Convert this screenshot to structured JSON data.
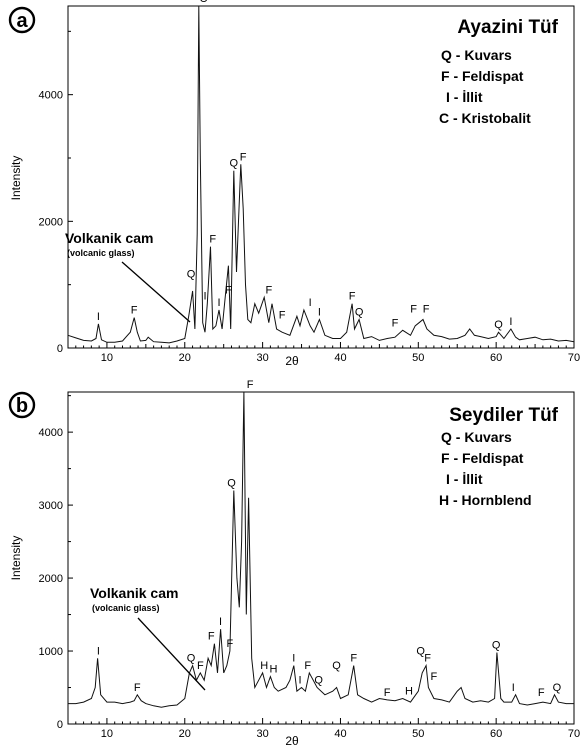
{
  "chart_data": [
    {
      "type": "line",
      "panel_label": "a",
      "title": "Ayazini Tüf",
      "xlabel": "2θ",
      "ylabel": "Intensity",
      "xlim": [
        5,
        70
      ],
      "ylim": [
        0,
        5400
      ],
      "xticks": [
        10,
        20,
        30,
        40,
        50,
        60,
        70
      ],
      "yticks": [
        0,
        2000,
        4000
      ],
      "legend": [
        "Q - Kuvars",
        "F - Feldispat",
        "I - İllit",
        "C - Kristobalit"
      ],
      "series": [
        {
          "x": [
            5,
            6,
            7,
            8,
            8.6,
            8.9,
            9.3,
            10,
            11,
            12,
            13,
            13.5,
            13.9,
            14.3,
            15,
            15.3,
            16,
            17,
            18,
            19,
            20,
            20.5,
            21.0,
            21.3,
            21.6,
            21.8,
            22.0,
            22.3,
            22.6,
            22.9,
            23.3,
            23.6,
            24.0,
            24.4,
            24.8,
            25.2,
            25.6,
            25.9,
            26.3,
            26.65,
            26.9,
            27.2,
            27.5,
            27.8,
            28.1,
            28.5,
            29,
            29.5,
            30.2,
            30.8,
            31.2,
            31.8,
            32.5,
            33.5,
            34.4,
            34.8,
            35.3,
            36.1,
            36.6,
            37.3,
            38,
            39,
            40,
            40.8,
            41.5,
            41.8,
            42.4,
            43,
            44,
            45,
            46,
            47,
            48,
            49,
            49.6,
            50.1,
            50.6,
            51.1,
            52,
            53,
            54,
            55,
            56,
            56.6,
            57.2,
            58,
            59,
            60,
            60.3,
            61,
            61.9,
            62.5,
            63,
            64,
            65,
            66,
            67,
            68,
            69,
            70
          ],
          "y": [
            200,
            160,
            120,
            110,
            150,
            380,
            130,
            90,
            90,
            110,
            250,
            480,
            250,
            110,
            120,
            170,
            100,
            90,
            80,
            110,
            150,
            500,
            900,
            300,
            1800,
            5400,
            3000,
            400,
            250,
            700,
            1600,
            300,
            350,
            600,
            300,
            800,
            1300,
            300,
            2800,
            1200,
            2000,
            2900,
            2200,
            1000,
            450,
            400,
            700,
            550,
            800,
            400,
            700,
            300,
            250,
            200,
            500,
            350,
            600,
            350,
            250,
            450,
            200,
            150,
            150,
            250,
            700,
            300,
            450,
            150,
            180,
            120,
            150,
            170,
            280,
            200,
            350,
            400,
            450,
            300,
            200,
            180,
            140,
            150,
            200,
            300,
            200,
            180,
            150,
            180,
            250,
            150,
            300,
            170,
            130,
            150,
            170,
            130,
            140,
            110,
            120,
            100
          ]
        }
      ],
      "annotations": [
        {
          "text": "I",
          "x": 8.9,
          "y": 380
        },
        {
          "text": "F",
          "x": 13.5,
          "y": 480
        },
        {
          "text": "Q",
          "x": 20.8,
          "y": 1050
        },
        {
          "text": "C",
          "x": 22.4,
          "y": 5400
        },
        {
          "text": "I",
          "x": 22.6,
          "y": 700
        },
        {
          "text": "F",
          "x": 23.6,
          "y": 1600
        },
        {
          "text": "I",
          "x": 24.4,
          "y": 600
        },
        {
          "text": "F",
          "x": 25.6,
          "y": 800
        },
        {
          "text": "Q",
          "x": 26.3,
          "y": 2800
        },
        {
          "text": "F",
          "x": 27.5,
          "y": 2900
        },
        {
          "text": "F",
          "x": 30.8,
          "y": 800
        },
        {
          "text": "F",
          "x": 32.5,
          "y": 400
        },
        {
          "text": "I",
          "x": 36.1,
          "y": 600
        },
        {
          "text": "I",
          "x": 37.3,
          "y": 450
        },
        {
          "text": "F",
          "x": 41.5,
          "y": 700
        },
        {
          "text": "Q",
          "x": 42.4,
          "y": 450
        },
        {
          "text": "F",
          "x": 47,
          "y": 280
        },
        {
          "text": "F",
          "x": 49.4,
          "y": 500
        },
        {
          "text": "F",
          "x": 51.0,
          "y": 500
        },
        {
          "text": "Q",
          "x": 60.3,
          "y": 250
        },
        {
          "text": "I",
          "x": 61.9,
          "y": 300
        }
      ],
      "callout": {
        "text": "Volkanik cam",
        "subtext": "(volcanic glass)"
      }
    },
    {
      "type": "line",
      "panel_label": "b",
      "title": "Seydiler Tüf",
      "xlabel": "2θ",
      "ylabel": "Intensity",
      "xlim": [
        5,
        70
      ],
      "ylim": [
        0,
        4550
      ],
      "xticks": [
        10,
        20,
        30,
        40,
        50,
        60,
        70
      ],
      "yticks": [
        0,
        1000,
        2000,
        3000,
        4000
      ],
      "legend": [
        "Q - Kuvars",
        "F - Feldispat",
        "I - İllit",
        "H - Hornblend"
      ],
      "series": [
        {
          "x": [
            5,
            6,
            7,
            8,
            8.5,
            8.8,
            9.2,
            10,
            11,
            12,
            13,
            13.5,
            13.9,
            14.4,
            15,
            16,
            17,
            18,
            19,
            20,
            20.6,
            21,
            21.5,
            22,
            22.5,
            23,
            23.4,
            23.8,
            24.2,
            24.6,
            25,
            25.4,
            25.8,
            26.3,
            26.7,
            27.0,
            27.3,
            27.6,
            27.9,
            28.2,
            28.6,
            29,
            29.5,
            30,
            30.5,
            31,
            31.5,
            32,
            33,
            33.5,
            34,
            34.4,
            35,
            35.5,
            36,
            37,
            38,
            39,
            39.5,
            40,
            41,
            41.7,
            42.2,
            43,
            44,
            45,
            46,
            47,
            48,
            49,
            50,
            50.5,
            51,
            51.3,
            52,
            53,
            54,
            55,
            55.5,
            56,
            57,
            58,
            59,
            59.8,
            60.1,
            60.6,
            61,
            62,
            62.5,
            63,
            64,
            65,
            66,
            67,
            67.5,
            68,
            69,
            70
          ],
          "y": [
            280,
            280,
            300,
            350,
            500,
            900,
            400,
            300,
            300,
            280,
            300,
            320,
            400,
            320,
            280,
            250,
            230,
            250,
            260,
            350,
            700,
            800,
            600,
            700,
            600,
            900,
            800,
            1100,
            700,
            1300,
            700,
            800,
            1000,
            3200,
            2000,
            1600,
            2500,
            4550,
            1500,
            3100,
            900,
            500,
            600,
            700,
            500,
            650,
            500,
            450,
            500,
            600,
            800,
            450,
            500,
            450,
            700,
            500,
            400,
            450,
            500,
            350,
            400,
            800,
            400,
            350,
            300,
            350,
            330,
            320,
            350,
            300,
            450,
            700,
            800,
            500,
            350,
            330,
            300,
            450,
            500,
            350,
            300,
            320,
            300,
            350,
            980,
            350,
            300,
            300,
            400,
            280,
            260,
            280,
            300,
            280,
            400,
            300,
            280,
            280
          ]
        }
      ],
      "annotations": [
        {
          "text": "I",
          "x": 8.9,
          "y": 900
        },
        {
          "text": "F",
          "x": 13.9,
          "y": 400
        },
        {
          "text": "Q",
          "x": 20.8,
          "y": 800
        },
        {
          "text": "F",
          "x": 22,
          "y": 700
        },
        {
          "text": "F",
          "x": 23.4,
          "y": 1100
        },
        {
          "text": "I",
          "x": 24.6,
          "y": 1300
        },
        {
          "text": "F",
          "x": 25.8,
          "y": 1000
        },
        {
          "text": "Q",
          "x": 26.0,
          "y": 3200
        },
        {
          "text": "F",
          "x": 28.4,
          "y": 4550
        },
        {
          "text": "H",
          "x": 30.2,
          "y": 700
        },
        {
          "text": "H",
          "x": 31.4,
          "y": 650
        },
        {
          "text": "I",
          "x": 34,
          "y": 800
        },
        {
          "text": "I",
          "x": 34.8,
          "y": 500
        },
        {
          "text": "F",
          "x": 35.8,
          "y": 700
        },
        {
          "text": "Q",
          "x": 37.2,
          "y": 500
        },
        {
          "text": "Q",
          "x": 39.5,
          "y": 700
        },
        {
          "text": "F",
          "x": 41.7,
          "y": 800
        },
        {
          "text": "F",
          "x": 46,
          "y": 330
        },
        {
          "text": "H",
          "x": 48.8,
          "y": 350
        },
        {
          "text": "Q",
          "x": 50.3,
          "y": 900
        },
        {
          "text": "F",
          "x": 51.2,
          "y": 800
        },
        {
          "text": "F",
          "x": 52.0,
          "y": 550
        },
        {
          "text": "Q",
          "x": 60.0,
          "y": 980
        },
        {
          "text": "I",
          "x": 62.2,
          "y": 400
        },
        {
          "text": "F",
          "x": 65.8,
          "y": 330
        },
        {
          "text": "Q",
          "x": 67.8,
          "y": 400
        }
      ],
      "callout": {
        "text": "Volkanik cam",
        "subtext": "(volcanic glass)"
      }
    }
  ]
}
